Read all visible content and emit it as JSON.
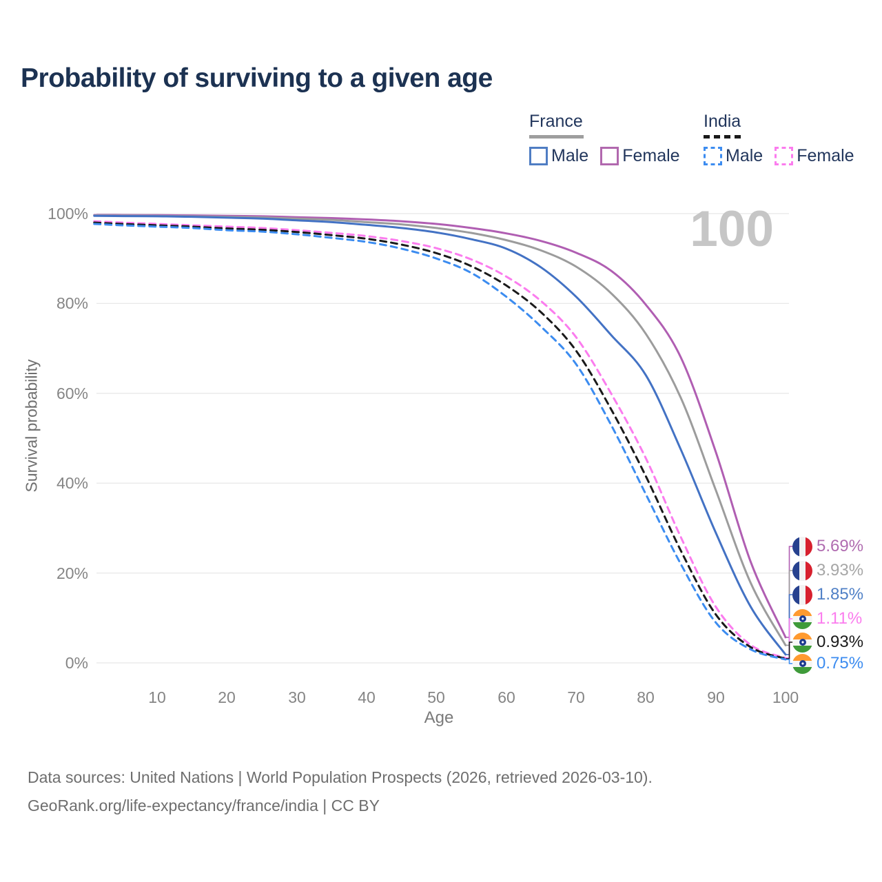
{
  "title": "Probability of surviving to a given age",
  "hover_readout": {
    "age": "100"
  },
  "legend": {
    "groups": [
      {
        "label": "France",
        "style": "solid",
        "color": "#9e9e9e",
        "items": [
          {
            "label": "Male",
            "color": "#4f7dc3"
          },
          {
            "label": "Female",
            "color": "#b168ae"
          }
        ]
      },
      {
        "label": "India",
        "style": "dashed",
        "color": "#1a1a1a",
        "items": [
          {
            "label": "Male",
            "color": "#3c8cf0"
          },
          {
            "label": "Female",
            "color": "#fb7cee"
          }
        ]
      }
    ]
  },
  "axes": {
    "y_label": "Survival probability",
    "x_label": "Age",
    "y_ticks": [
      "100%",
      "80%",
      "60%",
      "40%",
      "20%",
      "0%"
    ],
    "x_ticks": [
      "10",
      "20",
      "30",
      "40",
      "50",
      "60",
      "70",
      "80",
      "90",
      "100"
    ]
  },
  "footer": {
    "line1": "Data sources: United Nations | World Population Prospects (2026, retrieved 2026-03-10).",
    "line2": "GeoRank.org/life-expectancy/france/india | CC BY"
  },
  "chart_data": {
    "type": "line",
    "title": "Probability of surviving to a given age",
    "xlabel": "Age",
    "ylabel": "Survival probability",
    "xlim": [
      0,
      100
    ],
    "ylim": [
      0,
      100
    ],
    "x_tick_values": [
      10,
      20,
      30,
      40,
      50,
      60,
      70,
      80,
      90,
      100
    ],
    "y_tick_values": [
      100,
      80,
      60,
      40,
      20,
      0
    ],
    "grid": "horizontal-only",
    "legend_position": "top-right",
    "hover_age_watermark": "100",
    "x": [
      1,
      5,
      10,
      15,
      20,
      25,
      30,
      35,
      40,
      45,
      50,
      55,
      60,
      65,
      70,
      75,
      80,
      85,
      90,
      95,
      100
    ],
    "series": [
      {
        "name": "France Female",
        "country": "France",
        "sex": "Female",
        "style": "solid",
        "color": "#b05eb2",
        "end_label": "5.69%",
        "end_label_color": "#b06cb0",
        "flag": "france",
        "values": [
          99.7,
          99.68,
          99.65,
          99.6,
          99.5,
          99.4,
          99.2,
          99.0,
          98.7,
          98.3,
          97.7,
          96.8,
          95.6,
          93.9,
          91.3,
          87.3,
          79.7,
          68.0,
          47.0,
          22.5,
          5.69
        ]
      },
      {
        "name": "France Both sexes",
        "country": "France",
        "sex": "Both sexes",
        "style": "solid",
        "color": "#9c9c9c",
        "end_label": "3.93%",
        "end_label_color": "#a6a6a6",
        "flag": "france",
        "values": [
          99.6,
          99.55,
          99.5,
          99.4,
          99.3,
          99.15,
          98.9,
          98.6,
          98.1,
          97.6,
          96.8,
          95.7,
          94.1,
          91.8,
          88.2,
          82.3,
          73.2,
          59.0,
          38.5,
          17.8,
          3.93
        ]
      },
      {
        "name": "France Male",
        "country": "France",
        "sex": "Male",
        "style": "solid",
        "color": "#4372c4",
        "end_label": "1.85%",
        "end_label_color": "#5080c6",
        "flag": "france",
        "values": [
          99.5,
          99.45,
          99.4,
          99.3,
          99.1,
          98.9,
          98.5,
          98.1,
          97.5,
          96.8,
          95.8,
          94.3,
          92.2,
          88.0,
          81.5,
          73.0,
          64.0,
          47.5,
          29.0,
          12.5,
          1.85
        ]
      },
      {
        "name": "India Female",
        "country": "India",
        "sex": "Female",
        "style": "dashed",
        "color": "#fb7cee",
        "end_label": "1.11%",
        "end_label_color": "#fb7cee",
        "flag": "india",
        "values": [
          98.3,
          98.0,
          97.7,
          97.4,
          97.1,
          96.8,
          96.3,
          95.7,
          95.0,
          93.9,
          92.3,
          89.8,
          86.0,
          80.5,
          72.5,
          60.0,
          45.5,
          28.0,
          12.5,
          4.0,
          1.11
        ]
      },
      {
        "name": "India Both sexes",
        "country": "India",
        "sex": "Both sexes",
        "style": "dashed",
        "color": "#1a1a1a",
        "end_label": "0.93%",
        "end_label_color": "#1a1a1a",
        "flag": "india",
        "values": [
          98.0,
          97.7,
          97.4,
          97.1,
          96.7,
          96.4,
          95.9,
          95.2,
          94.4,
          93.1,
          91.2,
          88.3,
          84.0,
          78.0,
          69.5,
          56.5,
          41.5,
          25.0,
          10.8,
          3.5,
          0.93
        ]
      },
      {
        "name": "India Male",
        "country": "India",
        "sex": "Male",
        "style": "dashed",
        "color": "#3c8cf0",
        "end_label": "0.75%",
        "end_label_color": "#3c8cf0",
        "flag": "india",
        "values": [
          97.7,
          97.4,
          97.1,
          96.8,
          96.3,
          96.0,
          95.4,
          94.6,
          93.7,
          92.2,
          90.0,
          86.8,
          81.5,
          74.8,
          66.5,
          53.0,
          37.5,
          22.0,
          9.0,
          3.0,
          0.75
        ]
      }
    ]
  }
}
